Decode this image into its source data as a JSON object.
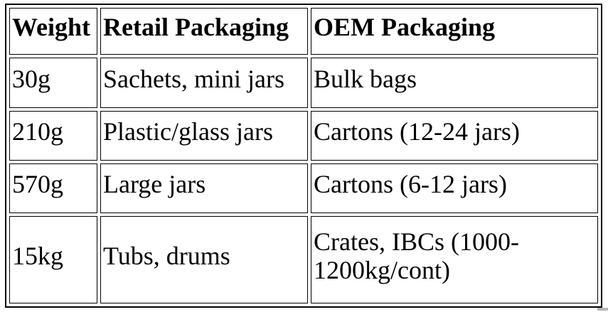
{
  "page": {
    "background": "#ffffff",
    "text_color": "#000000",
    "border_color": "#000000"
  },
  "table": {
    "columns": [
      {
        "label": "Weight"
      },
      {
        "label": "Retail Packaging"
      },
      {
        "label": "OEM Packaging"
      }
    ],
    "rows": [
      {
        "weight": "30g",
        "retail": "Sachets, mini jars",
        "oem": "Bulk bags"
      },
      {
        "weight": "210g",
        "retail": "Plastic/glass jars",
        "oem": "Cartons (12-24 jars)"
      },
      {
        "weight": "570g",
        "retail": "Large jars",
        "oem": "Cartons (6-12 jars)"
      },
      {
        "weight": "15kg",
        "retail": "Tubs, drums",
        "oem": "Crates, IBCs (1000-1200kg/cont)"
      }
    ]
  },
  "scrollbar": {
    "fragment_color": "#b3b3b3"
  }
}
